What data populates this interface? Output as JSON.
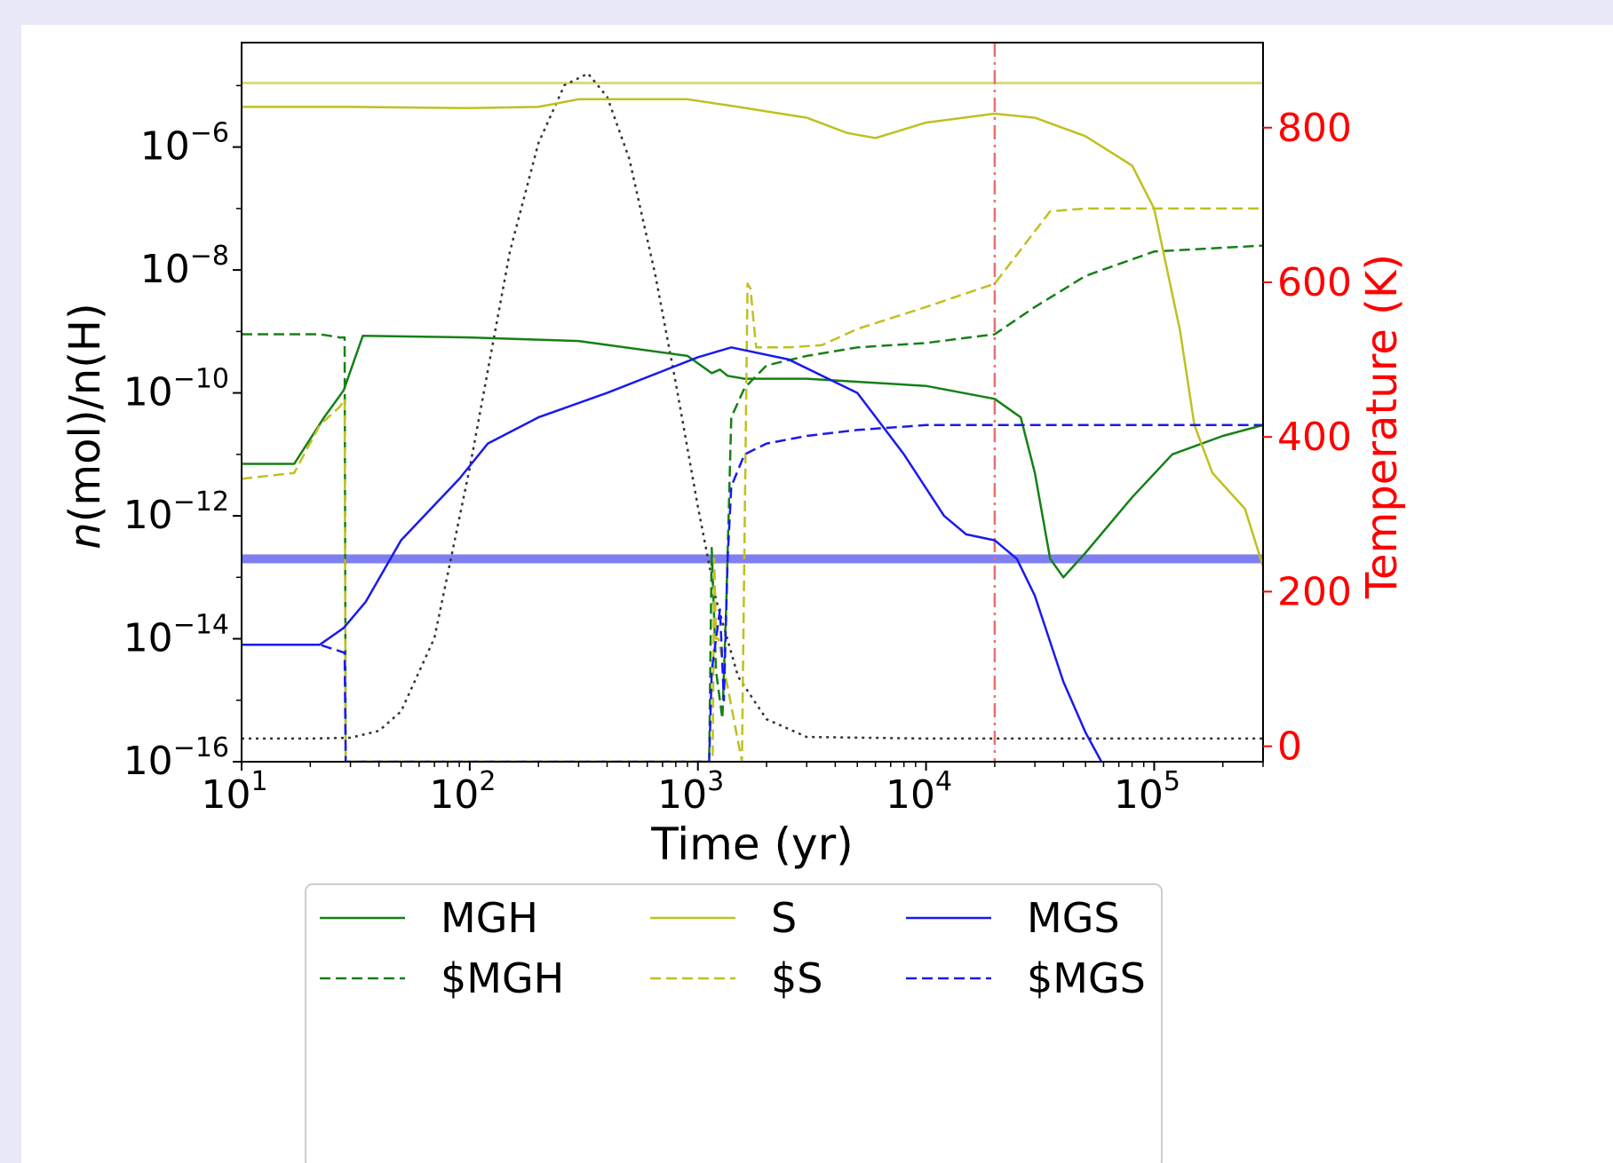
{
  "chart_data": {
    "type": "line",
    "xlabel": "Time (yr)",
    "ylabel_left": "n(mol)/n(H)",
    "ylabel_right": "Temperature (K)",
    "x_scale": "log",
    "x_range": [
      10,
      300000
    ],
    "y_left_scale": "log",
    "y_left_range": [
      1e-16,
      5e-05
    ],
    "y_right_range": [
      -20,
      910
    ],
    "x_ticks": [
      {
        "value": 10,
        "base": "10",
        "exp": "1"
      },
      {
        "value": 100,
        "base": "10",
        "exp": "2"
      },
      {
        "value": 1000,
        "base": "10",
        "exp": "3"
      },
      {
        "value": 10000,
        "base": "10",
        "exp": "4"
      },
      {
        "value": 100000,
        "base": "10",
        "exp": "5"
      }
    ],
    "y_left_ticks": [
      {
        "value": 1e-06,
        "base": "10",
        "exp": "−6"
      },
      {
        "value": 1e-08,
        "base": "10",
        "exp": "−8"
      },
      {
        "value": 1e-10,
        "base": "10",
        "exp": "−10"
      },
      {
        "value": 1e-12,
        "base": "10",
        "exp": "−12"
      },
      {
        "value": 1e-14,
        "base": "10",
        "exp": "−14"
      },
      {
        "value": 1e-16,
        "base": "10",
        "exp": "−16"
      }
    ],
    "y_right_ticks": [
      {
        "value": 0,
        "label": "0"
      },
      {
        "value": 200,
        "label": "200"
      },
      {
        "value": 400,
        "label": "400"
      },
      {
        "value": 600,
        "label": "600"
      },
      {
        "value": 800,
        "label": "800"
      }
    ],
    "legend_position": "bottom",
    "reference_lines": [
      {
        "orientation": "horizontal",
        "axis": "left",
        "value": 1.1e-05,
        "color": "#dada80",
        "style": "solid"
      },
      {
        "orientation": "horizontal",
        "axis": "left",
        "value": 2e-13,
        "color": "#6868ee",
        "style": "band"
      },
      {
        "orientation": "vertical",
        "value": 20000,
        "color": "#e87070",
        "style": "dashdot"
      }
    ],
    "temperature_series": {
      "color": "#333333",
      "style": "dotted",
      "axis": "right",
      "points": [
        [
          10,
          10
        ],
        [
          20,
          10
        ],
        [
          30,
          11
        ],
        [
          40,
          20
        ],
        [
          50,
          45
        ],
        [
          70,
          140
        ],
        [
          100,
          360
        ],
        [
          150,
          640
        ],
        [
          200,
          780
        ],
        [
          260,
          855
        ],
        [
          330,
          870
        ],
        [
          400,
          840
        ],
        [
          500,
          760
        ],
        [
          650,
          610
        ],
        [
          800,
          470
        ],
        [
          1000,
          310
        ],
        [
          1200,
          190
        ],
        [
          1500,
          90
        ],
        [
          2000,
          35
        ],
        [
          3000,
          12
        ],
        [
          10000,
          10
        ],
        [
          300000,
          10
        ]
      ]
    },
    "series": [
      {
        "name": "MGH",
        "color": "#168016",
        "style": "solid",
        "points": [
          [
            10,
            7e-12
          ],
          [
            17,
            7e-12
          ],
          [
            23,
            4e-11
          ],
          [
            28,
            1.1e-10
          ],
          [
            34,
            8.5e-10
          ],
          [
            100,
            8e-10
          ],
          [
            300,
            7e-10
          ],
          [
            900,
            4e-10
          ],
          [
            1150,
            2.1e-10
          ],
          [
            1250,
            2.4e-10
          ],
          [
            1350,
            1.9e-10
          ],
          [
            1600,
            1.7e-10
          ],
          [
            3000,
            1.7e-10
          ],
          [
            10000,
            1.3e-10
          ],
          [
            20000,
            8e-11
          ],
          [
            26000,
            4e-11
          ],
          [
            30000,
            5e-12
          ],
          [
            35000,
            2e-13
          ],
          [
            40000,
            1e-13
          ],
          [
            50000,
            2.5e-13
          ],
          [
            80000,
            2e-12
          ],
          [
            120000,
            1e-11
          ],
          [
            200000,
            2e-11
          ],
          [
            300000,
            3e-11
          ]
        ]
      },
      {
        "name": "$MGH",
        "color": "#168016",
        "style": "dashed",
        "points": [
          [
            10,
            9e-10
          ],
          [
            22,
            9e-10
          ],
          [
            27,
            8e-10
          ],
          [
            28.3,
            8e-10
          ],
          [
            28.6,
            1e-16
          ],
          [
            1120,
            1e-16
          ],
          [
            1150,
            3e-13
          ],
          [
            1200,
            3e-15
          ],
          [
            1280,
            5e-16
          ],
          [
            1330,
            3e-14
          ],
          [
            1400,
            4e-11
          ],
          [
            1600,
            1.2e-10
          ],
          [
            2000,
            2.8e-10
          ],
          [
            3000,
            4e-10
          ],
          [
            5000,
            5.5e-10
          ],
          [
            10000,
            6.5e-10
          ],
          [
            20000,
            9e-10
          ],
          [
            30000,
            2.5e-09
          ],
          [
            50000,
            8e-09
          ],
          [
            100000,
            2e-08
          ],
          [
            300000,
            2.5e-08
          ]
        ]
      },
      {
        "name": "S",
        "color": "#c0c020",
        "style": "solid",
        "points": [
          [
            10,
            4.5e-06
          ],
          [
            30,
            4.5e-06
          ],
          [
            100,
            4.3e-06
          ],
          [
            200,
            4.5e-06
          ],
          [
            300,
            6e-06
          ],
          [
            900,
            6e-06
          ],
          [
            1500,
            4.5e-06
          ],
          [
            3000,
            3e-06
          ],
          [
            4500,
            1.7e-06
          ],
          [
            6000,
            1.4e-06
          ],
          [
            10000,
            2.5e-06
          ],
          [
            20000,
            3.5e-06
          ],
          [
            30000,
            3e-06
          ],
          [
            50000,
            1.5e-06
          ],
          [
            80000,
            5e-07
          ],
          [
            100000,
            1e-07
          ],
          [
            130000,
            1e-09
          ],
          [
            150000,
            3e-11
          ],
          [
            180000,
            5e-12
          ],
          [
            250000,
            1.3e-12
          ],
          [
            300000,
            1.5e-13
          ]
        ]
      },
      {
        "name": "$S",
        "color": "#c0c020",
        "style": "dashed",
        "points": [
          [
            10,
            4e-12
          ],
          [
            17,
            5e-12
          ],
          [
            22,
            3e-11
          ],
          [
            27,
            6e-11
          ],
          [
            28.3,
            8e-11
          ],
          [
            28.6,
            1e-16
          ],
          [
            1160,
            1e-16
          ],
          [
            1180,
            2e-13
          ],
          [
            1200,
            1e-14
          ],
          [
            1230,
            1e-14
          ],
          [
            1560,
            1e-16
          ],
          [
            1650,
            6e-09
          ],
          [
            1700,
            5e-09
          ],
          [
            1800,
            5.5e-10
          ],
          [
            2500,
            5.5e-10
          ],
          [
            3500,
            6e-10
          ],
          [
            5000,
            1.1e-09
          ],
          [
            10000,
            2.5e-09
          ],
          [
            20000,
            6e-09
          ],
          [
            35000,
            9e-08
          ],
          [
            50000,
            1e-07
          ],
          [
            300000,
            1e-07
          ]
        ]
      },
      {
        "name": "MGS",
        "color": "#1a1aee",
        "style": "solid",
        "points": [
          [
            10,
            8e-15
          ],
          [
            22,
            8e-15
          ],
          [
            28,
            1.5e-14
          ],
          [
            35,
            4e-14
          ],
          [
            50,
            4e-13
          ],
          [
            70,
            1.5e-12
          ],
          [
            90,
            4e-12
          ],
          [
            120,
            1.5e-11
          ],
          [
            200,
            4e-11
          ],
          [
            400,
            1e-10
          ],
          [
            1000,
            3.8e-10
          ],
          [
            1400,
            5.5e-10
          ],
          [
            2500,
            3.5e-10
          ],
          [
            5000,
            1e-10
          ],
          [
            8000,
            1e-11
          ],
          [
            12000,
            1e-12
          ],
          [
            15000,
            5e-13
          ],
          [
            20000,
            4e-13
          ],
          [
            25000,
            2e-13
          ],
          [
            30000,
            5e-14
          ],
          [
            40000,
            2e-15
          ],
          [
            50000,
            3e-16
          ],
          [
            70000,
            3e-17
          ],
          [
            90000,
            2e-18
          ]
        ]
      },
      {
        "name": "$MGS",
        "color": "#1a1aee",
        "style": "dashed",
        "points": [
          [
            10,
            8e-15
          ],
          [
            22,
            8e-15
          ],
          [
            28,
            6e-15
          ],
          [
            28.3,
            6e-15
          ],
          [
            28.6,
            1e-16
          ],
          [
            1120,
            1e-16
          ],
          [
            1150,
            3e-15
          ],
          [
            1250,
            3e-14
          ],
          [
            1300,
            1e-15
          ],
          [
            1350,
            2e-13
          ],
          [
            1400,
            3e-12
          ],
          [
            1600,
            1e-11
          ],
          [
            2000,
            1.5e-11
          ],
          [
            3000,
            2e-11
          ],
          [
            5000,
            2.5e-11
          ],
          [
            10000,
            3e-11
          ],
          [
            300000,
            3e-11
          ]
        ]
      }
    ]
  }
}
